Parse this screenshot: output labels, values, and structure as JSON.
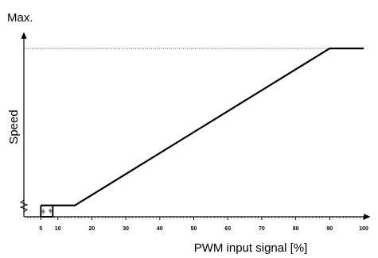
{
  "chart_data": {
    "type": "line",
    "title": "",
    "xlabel": "PWM input signal [%]",
    "ylabel": "Speed",
    "y_max_label": "Max.",
    "x_ticks": [
      5,
      10,
      20,
      30,
      40,
      50,
      60,
      70,
      80,
      90,
      100
    ],
    "xlim": [
      0,
      100
    ],
    "ylim": [
      0,
      100
    ],
    "series": [
      {
        "x": [
          5,
          15,
          90,
          100
        ],
        "y": [
          4,
          4,
          100,
          100
        ]
      }
    ],
    "hysteresis": {
      "x_low": 5,
      "x_high": 8.5,
      "y_level": 4,
      "up_arrow_x": 5,
      "down_arrow_x": 8.5
    },
    "max_reference_line": {
      "y": 100,
      "style": "dotted"
    },
    "grid": false,
    "legend": "none"
  }
}
